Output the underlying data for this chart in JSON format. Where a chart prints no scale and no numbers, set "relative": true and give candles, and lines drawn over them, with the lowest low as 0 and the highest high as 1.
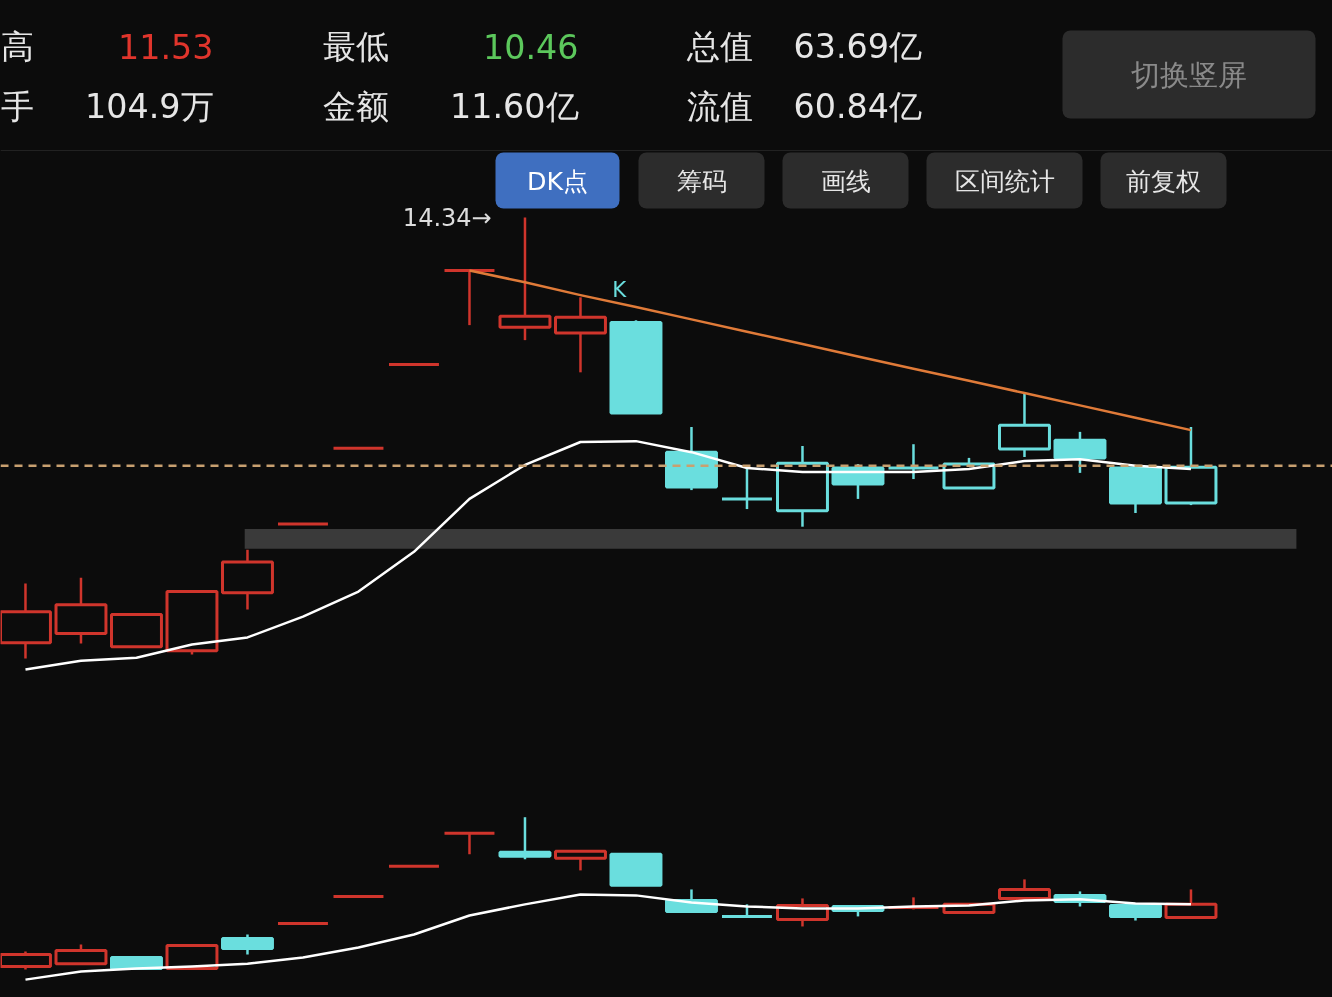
{
  "chart_data": [
    {
      "type": "candlestick",
      "relative": true,
      "categories": [
        null,
        null,
        null,
        null,
        null,
        null,
        null,
        null,
        null,
        null,
        null,
        null,
        null,
        null,
        null,
        null,
        null,
        null,
        null,
        null,
        null,
        null
      ],
      "ohlc": [
        [
          0.036,
          0.17,
          0,
          0.106
        ],
        [
          0.057,
          0.183,
          0.034,
          0.122
        ],
        [
          0.027,
          0.1,
          0.027,
          0.1
        ],
        [
          0.018,
          0.152,
          0.009,
          0.152
        ],
        [
          0.149,
          0.247,
          0.111,
          0.219
        ],
        [
          0.305,
          0.305,
          0.305,
          0.305
        ],
        [
          0.477,
          0.477,
          0.477,
          0.477
        ],
        [
          0.667,
          0.667,
          0.667,
          0.667
        ],
        [
          0.88,
          0.88,
          0.756,
          0.88
        ],
        [
          0.751,
          1,
          0.722,
          0.776
        ],
        [
          0.738,
          0.819,
          0.649,
          0.774
        ],
        [
          0.762,
          0.767,
          0.557,
          0.557
        ],
        [
          0.468,
          0.525,
          0.382,
          0.389
        ],
        [
          0.362,
          0.43,
          0.339,
          0.362
        ],
        [
          0.335,
          0.482,
          0.299,
          0.443
        ],
        [
          0.432,
          0.441,
          0.362,
          0.396
        ],
        [
          0.432,
          0.486,
          0.407,
          0.432
        ],
        [
          0.387,
          0.455,
          0.387,
          0.441
        ],
        [
          0.475,
          0.6,
          0.457,
          0.529
        ],
        [
          0.495,
          0.514,
          0.421,
          0.455
        ],
        [
          0.432,
          0.432,
          0.33,
          0.353
        ],
        [
          0.353,
          0.525,
          0.348,
          0.434
        ]
      ],
      "colors": [
        "#d0352c",
        "#d0352c",
        "#d0352c",
        "#d0352c",
        "#d0352c",
        "#d0352c",
        "#d0352c",
        "#d0352c",
        "#d0352c",
        "#d0352c",
        "#d0352c",
        "#6adede",
        "#6adede",
        "#6adede",
        "#6adede",
        "#6adede",
        "#6adede",
        "#6adede",
        "#6adede",
        "#6adede",
        "#6adede",
        "#6adede"
      ],
      "series": [
        {
          "type": "line",
          "color": "#ffffff",
          "values": [
            -0.025,
            -0.005,
            0.002,
            0.032,
            0.048,
            0.095,
            0.152,
            0.242,
            0.362,
            0.439,
            0.491,
            0.493,
            0.468,
            0.432,
            0.423,
            0.423,
            0.423,
            0.43,
            0.448,
            0.452,
            0.437,
            0.43
          ]
        },
        {
          "type": "line",
          "color": "#e07b39",
          "values": [
            null,
            null,
            null,
            null,
            null,
            null,
            null,
            null,
            0.88,
            0.853,
            0.824,
            0.797,
            0.769,
            0.741,
            0.713,
            0.685,
            0.657,
            0.63,
            0.602,
            0.574,
            0.546,
            0.518
          ]
        }
      ],
      "ref_lines": [
        {
          "axis": "y",
          "value": 0.437,
          "color": "#c8a070",
          "line_style": "dashed"
        }
      ],
      "bands": [
        {
          "axis": "y",
          "from": 0.249,
          "to": 0.294,
          "color": "#3a3a3a"
        }
      ],
      "annotations": [
        "14.34→",
        "K",
        "高",
        "11.53",
        "最低",
        "10.46",
        "总值",
        "63.69亿",
        "手",
        "104.9万",
        "金额",
        "11.60亿",
        "流值",
        "60.84亿",
        "切换竖屏",
        "DK点",
        "筹码",
        "画线",
        "区间统计",
        "前复权"
      ]
    },
    {
      "type": "candlestick",
      "relative": true,
      "categories": [
        null,
        null,
        null,
        null,
        null,
        null,
        null,
        null,
        null,
        null,
        null,
        null,
        null,
        null,
        null,
        null,
        null,
        null,
        null,
        null,
        null,
        null
      ],
      "ohlc": [
        [
          0.02,
          0.118,
          0,
          0.099
        ],
        [
          0.039,
          0.164,
          0.039,
          0.125
        ],
        [
          0.079,
          0.079,
          0.007,
          0.007
        ],
        [
          0.007,
          0.158,
          0.007,
          0.158
        ],
        [
          0.204,
          0.23,
          0.099,
          0.138
        ],
        [
          0.303,
          0.303,
          0.303,
          0.303
        ],
        [
          0.48,
          0.48,
          0.48,
          0.48
        ],
        [
          0.678,
          0.678,
          0.678,
          0.678
        ],
        [
          0.895,
          0.895,
          0.757,
          0.895
        ],
        [
          0.77,
          1,
          0.724,
          0.743
        ],
        [
          0.73,
          0.776,
          0.651,
          0.776
        ],
        [
          0.757,
          0.757,
          0.553,
          0.553
        ],
        [
          0.454,
          0.526,
          0.382,
          0.382
        ],
        [
          0.349,
          0.428,
          0.349,
          0.349
        ],
        [
          0.329,
          0.467,
          0.283,
          0.421
        ],
        [
          0.414,
          0.414,
          0.349,
          0.388
        ],
        [
          0.408,
          0.474,
          0.395,
          0.408
        ],
        [
          0.375,
          0.428,
          0.375,
          0.428
        ],
        [
          0.467,
          0.592,
          0.467,
          0.526
        ],
        [
          0.487,
          0.513,
          0.414,
          0.447
        ],
        [
          0.421,
          0.421,
          0.322,
          0.349
        ],
        [
          0.342,
          0.526,
          0.342,
          0.428
        ]
      ],
      "colors": [
        "#d0352c",
        "#d0352c",
        "#6adede",
        "#d0352c",
        "#6adede",
        "#d0352c",
        "#d0352c",
        "#d0352c",
        "#d0352c",
        "#6adede",
        "#d0352c",
        "#6adede",
        "#6adede",
        "#6adede",
        "#d0352c",
        "#6adede",
        "#d0352c",
        "#d0352c",
        "#d0352c",
        "#6adede",
        "#6adede",
        "#d0352c"
      ],
      "series": [
        {
          "type": "line",
          "color": "#ffffff",
          "values": [
            -0.066,
            -0.013,
            0.007,
            0.02,
            0.039,
            0.079,
            0.145,
            0.23,
            0.355,
            0.428,
            0.493,
            0.487,
            0.441,
            0.414,
            0.401,
            0.401,
            0.414,
            0.421,
            0.454,
            0.461,
            0.434,
            0.428
          ]
        }
      ]
    }
  ]
}
